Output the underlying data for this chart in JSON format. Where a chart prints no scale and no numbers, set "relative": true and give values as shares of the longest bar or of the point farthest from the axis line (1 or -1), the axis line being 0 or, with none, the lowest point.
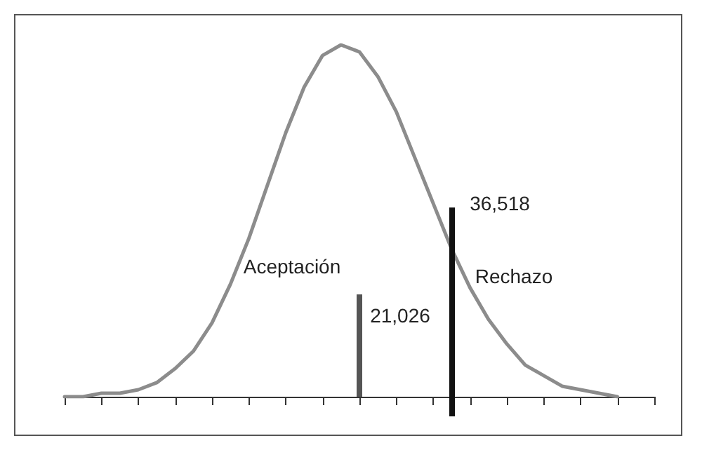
{
  "chart_data": {
    "type": "line",
    "relative": true,
    "marker": "none",
    "line_style": "solid",
    "categories": [
      null,
      null,
      null,
      null,
      null,
      null,
      null,
      null,
      null,
      null,
      null,
      null,
      null,
      null,
      null,
      null,
      null,
      null,
      null,
      null,
      null,
      null,
      null,
      null,
      null,
      null,
      null,
      null,
      null,
      null,
      null,
      null,
      null
    ],
    "series": [
      {
        "color": "#8c8c8c",
        "values": [
          0,
          0,
          0.01,
          0.01,
          0.02,
          0.04,
          0.08,
          0.13,
          0.21,
          0.32,
          0.45,
          0.6,
          0.75,
          0.88,
          0.97,
          1,
          0.98,
          0.91,
          0.81,
          0.68,
          0.55,
          0.42,
          0.31,
          0.22,
          0.15,
          0.09,
          0.06,
          0.03,
          0.02,
          0.01,
          0,
          null,
          null
        ]
      }
    ],
    "annotations": [
      "Aceptación",
      "Rechazo",
      "21,026",
      "36,518"
    ]
  }
}
